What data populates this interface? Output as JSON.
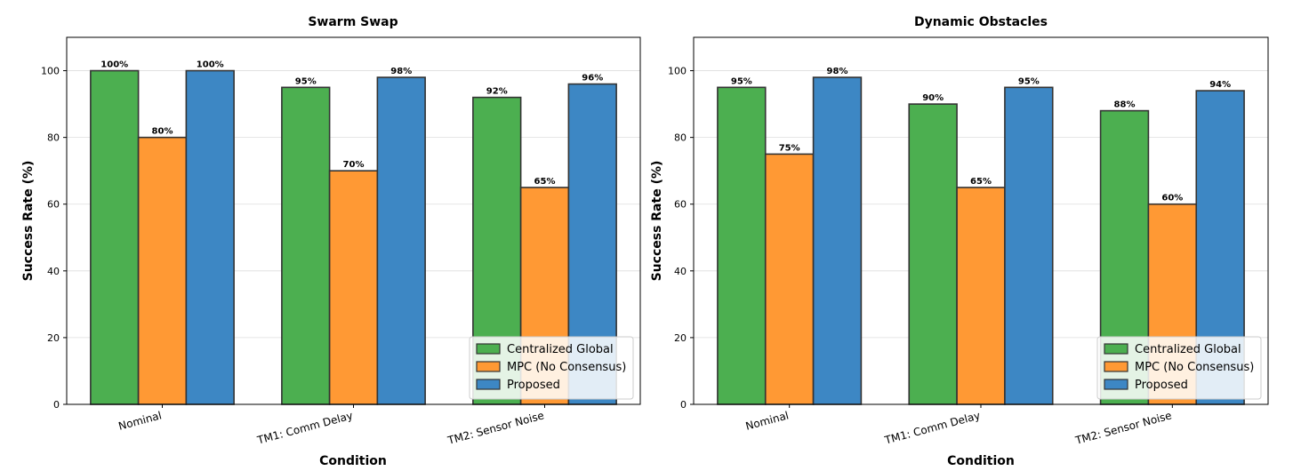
{
  "chart_data": [
    {
      "type": "bar",
      "title": "Swarm Swap",
      "xlabel": "Condition",
      "ylabel": "Success Rate (%)",
      "ylim": [
        0,
        110
      ],
      "yticks": [
        0,
        20,
        40,
        60,
        80,
        100
      ],
      "grid": true,
      "legend_position": "bottom-right",
      "categories": [
        "Nominal",
        "TM1: Comm Delay",
        "TM2: Sensor Noise"
      ],
      "series": [
        {
          "name": "Centralized Global",
          "values": [
            100,
            95,
            92
          ],
          "labels": [
            "100%",
            "95%",
            "92%"
          ]
        },
        {
          "name": "MPC (No Consensus)",
          "values": [
            80,
            70,
            65
          ],
          "labels": [
            "80%",
            "70%",
            "65%"
          ]
        },
        {
          "name": "Proposed",
          "values": [
            100,
            98,
            96
          ],
          "labels": [
            "100%",
            "98%",
            "96%"
          ]
        }
      ]
    },
    {
      "type": "bar",
      "title": "Dynamic Obstacles",
      "xlabel": "Condition",
      "ylabel": "Success Rate (%)",
      "ylim": [
        0,
        110
      ],
      "yticks": [
        0,
        20,
        40,
        60,
        80,
        100
      ],
      "grid": true,
      "legend_position": "bottom-right",
      "categories": [
        "Nominal",
        "TM1: Comm Delay",
        "TM2: Sensor Noise"
      ],
      "series": [
        {
          "name": "Centralized Global",
          "values": [
            95,
            90,
            88
          ],
          "labels": [
            "95%",
            "90%",
            "88%"
          ]
        },
        {
          "name": "MPC (No Consensus)",
          "values": [
            75,
            65,
            60
          ],
          "labels": [
            "75%",
            "65%",
            "60%"
          ]
        },
        {
          "name": "Proposed",
          "values": [
            98,
            95,
            94
          ],
          "labels": [
            "98%",
            "95%",
            "94%"
          ]
        }
      ]
    }
  ],
  "series_colors": [
    "#4caf50",
    "#ff9934",
    "#3d87c4"
  ],
  "edge_color": "#333333"
}
